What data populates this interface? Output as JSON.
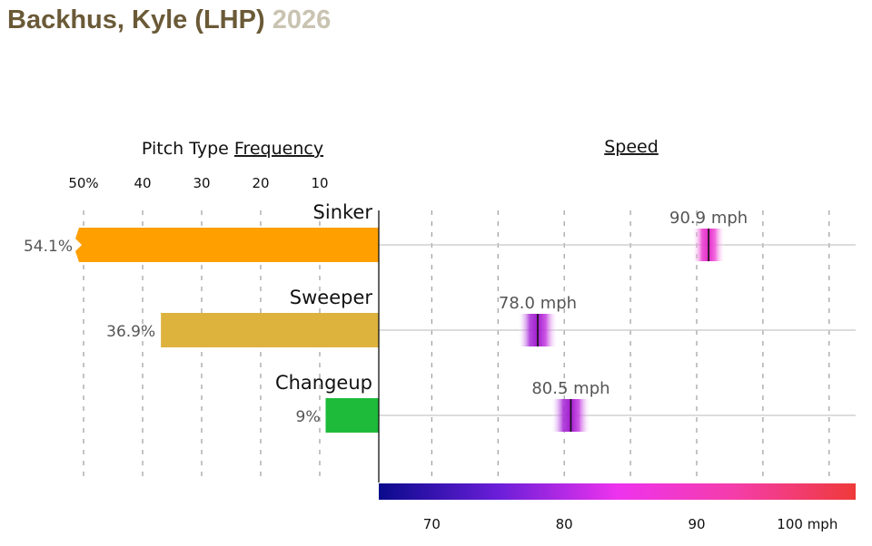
{
  "header": {
    "player_name": "Backhus, Kyle (LHP)",
    "season": "2026"
  },
  "chart_data": {
    "type": "bar",
    "freq_title_prefix": "Pitch Type ",
    "freq_title_underlined": "Frequency",
    "speed_title": "Speed",
    "freq_ticks": [
      "50%",
      "40",
      "30",
      "20",
      "10"
    ],
    "freq_tick_values": [
      50,
      40,
      30,
      20,
      10
    ],
    "speed_ticks": [
      "70",
      "80",
      "90",
      "100 mph"
    ],
    "speed_tick_values": [
      70,
      80,
      90,
      100
    ],
    "speed_range": [
      66,
      102
    ],
    "pitches": [
      {
        "name": "Sinker",
        "frequency": 54.1,
        "frequency_label": "54.1%",
        "speed": 90.9,
        "speed_label": "90.9 mph",
        "color": "#ff9f00"
      },
      {
        "name": "Sweeper",
        "frequency": 36.9,
        "frequency_label": "36.9%",
        "speed": 78.0,
        "speed_label": "78.0 mph",
        "color": "#ddb33e"
      },
      {
        "name": "Changeup",
        "frequency": 9,
        "frequency_label": "9%",
        "speed": 80.5,
        "speed_label": "80.5 mph",
        "color": "#1ebb3b"
      }
    ],
    "speed_gradient": [
      "#0a0a8c",
      "#6a1ed8",
      "#ee33ee",
      "#f43da8",
      "#ef3a3a"
    ]
  }
}
